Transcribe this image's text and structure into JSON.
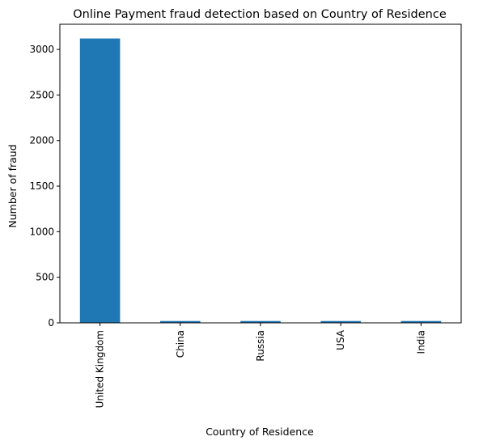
{
  "chart_data": {
    "type": "bar",
    "title": "Online Payment fraud detection based on Country of Residence",
    "xlabel": "Country of Residence",
    "ylabel": "Number of fraud",
    "categories": [
      "United Kingdom",
      "China",
      "Russia",
      "USA",
      "India"
    ],
    "values": [
      3120,
      20,
      20,
      20,
      20
    ],
    "y_ticks": [
      0,
      500,
      1000,
      1500,
      2000,
      2500,
      3000
    ],
    "ylim": [
      0,
      3276
    ],
    "grid": false,
    "legend": "none",
    "bar_color": "#1f77b4"
  }
}
